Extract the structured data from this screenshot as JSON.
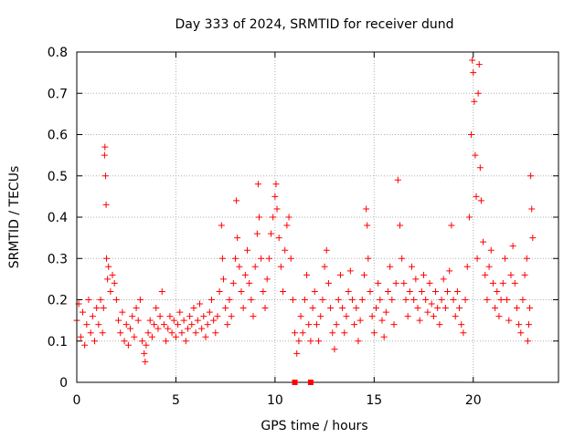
{
  "chart_data": {
    "type": "scatter",
    "title": "Day 333 of 2024, SRMTID for receiver dund",
    "xlabel": "GPS time / hours",
    "ylabel": "SRMTID / TECUs",
    "xlim": [
      0,
      24.3
    ],
    "ylim": [
      0,
      0.8
    ],
    "x_ticks": [
      0,
      5,
      10,
      15,
      20
    ],
    "x_tick_labels": [
      "0",
      "5",
      "10",
      "15",
      "20"
    ],
    "y_ticks": [
      0,
      0.1,
      0.2,
      0.3,
      0.4,
      0.5,
      0.6,
      0.7,
      0.8
    ],
    "y_tick_labels": [
      "0",
      "0.1",
      "0.2",
      "0.3",
      "0.4",
      "0.5",
      "0.6",
      "0.7",
      "0.8"
    ],
    "grid": true,
    "marker": "plus",
    "color": "#ff0000",
    "series": [
      {
        "name": "SRMTID",
        "points": [
          [
            0.0,
            0.15
          ],
          [
            0.1,
            0.19
          ],
          [
            0.2,
            0.11
          ],
          [
            0.3,
            0.17
          ],
          [
            0.4,
            0.09
          ],
          [
            0.5,
            0.14
          ],
          [
            0.6,
            0.2
          ],
          [
            0.7,
            0.12
          ],
          [
            0.8,
            0.16
          ],
          [
            0.9,
            0.1
          ],
          [
            1.0,
            0.18
          ],
          [
            1.1,
            0.14
          ],
          [
            1.2,
            0.2
          ],
          [
            1.3,
            0.12
          ],
          [
            1.35,
            0.18
          ],
          [
            1.4,
            0.55
          ],
          [
            1.42,
            0.57
          ],
          [
            1.45,
            0.5
          ],
          [
            1.48,
            0.43
          ],
          [
            1.5,
            0.3
          ],
          [
            1.55,
            0.25
          ],
          [
            1.6,
            0.28
          ],
          [
            1.7,
            0.22
          ],
          [
            1.8,
            0.26
          ],
          [
            1.9,
            0.24
          ],
          [
            2.0,
            0.2
          ],
          [
            2.1,
            0.15
          ],
          [
            2.2,
            0.12
          ],
          [
            2.3,
            0.17
          ],
          [
            2.4,
            0.1
          ],
          [
            2.5,
            0.14
          ],
          [
            2.6,
            0.09
          ],
          [
            2.7,
            0.13
          ],
          [
            2.8,
            0.16
          ],
          [
            2.9,
            0.11
          ],
          [
            3.0,
            0.18
          ],
          [
            3.1,
            0.15
          ],
          [
            3.2,
            0.2
          ],
          [
            3.3,
            0.1
          ],
          [
            3.4,
            0.07
          ],
          [
            3.45,
            0.05
          ],
          [
            3.5,
            0.09
          ],
          [
            3.6,
            0.12
          ],
          [
            3.7,
            0.15
          ],
          [
            3.8,
            0.11
          ],
          [
            3.9,
            0.14
          ],
          [
            4.0,
            0.18
          ],
          [
            4.1,
            0.13
          ],
          [
            4.2,
            0.16
          ],
          [
            4.3,
            0.22
          ],
          [
            4.4,
            0.14
          ],
          [
            4.5,
            0.1
          ],
          [
            4.6,
            0.13
          ],
          [
            4.7,
            0.16
          ],
          [
            4.8,
            0.12
          ],
          [
            4.9,
            0.15
          ],
          [
            5.0,
            0.11
          ],
          [
            5.1,
            0.14
          ],
          [
            5.2,
            0.17
          ],
          [
            5.3,
            0.12
          ],
          [
            5.4,
            0.15
          ],
          [
            5.5,
            0.1
          ],
          [
            5.6,
            0.13
          ],
          [
            5.7,
            0.16
          ],
          [
            5.8,
            0.14
          ],
          [
            5.9,
            0.18
          ],
          [
            6.0,
            0.12
          ],
          [
            6.1,
            0.15
          ],
          [
            6.2,
            0.19
          ],
          [
            6.3,
            0.13
          ],
          [
            6.4,
            0.16
          ],
          [
            6.5,
            0.11
          ],
          [
            6.6,
            0.14
          ],
          [
            6.7,
            0.17
          ],
          [
            6.8,
            0.2
          ],
          [
            6.9,
            0.15
          ],
          [
            7.0,
            0.12
          ],
          [
            7.1,
            0.16
          ],
          [
            7.2,
            0.22
          ],
          [
            7.3,
            0.38
          ],
          [
            7.35,
            0.3
          ],
          [
            7.4,
            0.25
          ],
          [
            7.5,
            0.18
          ],
          [
            7.6,
            0.14
          ],
          [
            7.7,
            0.2
          ],
          [
            7.8,
            0.16
          ],
          [
            7.9,
            0.24
          ],
          [
            8.0,
            0.3
          ],
          [
            8.05,
            0.44
          ],
          [
            8.1,
            0.35
          ],
          [
            8.2,
            0.28
          ],
          [
            8.3,
            0.22
          ],
          [
            8.4,
            0.18
          ],
          [
            8.5,
            0.26
          ],
          [
            8.6,
            0.32
          ],
          [
            8.7,
            0.24
          ],
          [
            8.8,
            0.2
          ],
          [
            8.9,
            0.16
          ],
          [
            9.0,
            0.28
          ],
          [
            9.1,
            0.36
          ],
          [
            9.15,
            0.48
          ],
          [
            9.2,
            0.4
          ],
          [
            9.3,
            0.3
          ],
          [
            9.4,
            0.22
          ],
          [
            9.5,
            0.18
          ],
          [
            9.6,
            0.25
          ],
          [
            9.7,
            0.3
          ],
          [
            9.8,
            0.36
          ],
          [
            9.9,
            0.4
          ],
          [
            10.0,
            0.45
          ],
          [
            10.05,
            0.48
          ],
          [
            10.1,
            0.42
          ],
          [
            10.2,
            0.35
          ],
          [
            10.3,
            0.28
          ],
          [
            10.4,
            0.22
          ],
          [
            10.5,
            0.32
          ],
          [
            10.6,
            0.38
          ],
          [
            10.7,
            0.4
          ],
          [
            10.8,
            0.3
          ],
          [
            10.9,
            0.2
          ],
          [
            11.0,
            0.12
          ],
          [
            11.1,
            0.07
          ],
          [
            11.2,
            0.1
          ],
          [
            11.3,
            0.16
          ],
          [
            11.4,
            0.12
          ],
          [
            11.5,
            0.2
          ],
          [
            11.6,
            0.26
          ],
          [
            11.7,
            0.14
          ],
          [
            11.8,
            0.1
          ],
          [
            11.9,
            0.18
          ],
          [
            12.0,
            0.22
          ],
          [
            12.1,
            0.14
          ],
          [
            12.2,
            0.1
          ],
          [
            12.3,
            0.16
          ],
          [
            12.4,
            0.2
          ],
          [
            12.5,
            0.28
          ],
          [
            12.6,
            0.32
          ],
          [
            12.7,
            0.24
          ],
          [
            12.8,
            0.18
          ],
          [
            12.9,
            0.12
          ],
          [
            13.0,
            0.08
          ],
          [
            13.1,
            0.14
          ],
          [
            13.2,
            0.2
          ],
          [
            13.3,
            0.26
          ],
          [
            13.4,
            0.18
          ],
          [
            13.5,
            0.12
          ],
          [
            13.6,
            0.16
          ],
          [
            13.7,
            0.22
          ],
          [
            13.8,
            0.27
          ],
          [
            13.9,
            0.2
          ],
          [
            14.0,
            0.14
          ],
          [
            14.1,
            0.18
          ],
          [
            14.2,
            0.1
          ],
          [
            14.3,
            0.15
          ],
          [
            14.4,
            0.2
          ],
          [
            14.5,
            0.26
          ],
          [
            14.6,
            0.42
          ],
          [
            14.65,
            0.38
          ],
          [
            14.7,
            0.3
          ],
          [
            14.8,
            0.22
          ],
          [
            14.9,
            0.16
          ],
          [
            15.0,
            0.12
          ],
          [
            15.1,
            0.18
          ],
          [
            15.2,
            0.24
          ],
          [
            15.3,
            0.2
          ],
          [
            15.4,
            0.15
          ],
          [
            15.5,
            0.11
          ],
          [
            15.6,
            0.17
          ],
          [
            15.7,
            0.22
          ],
          [
            15.8,
            0.28
          ],
          [
            15.9,
            0.2
          ],
          [
            16.0,
            0.14
          ],
          [
            16.1,
            0.24
          ],
          [
            16.2,
            0.49
          ],
          [
            16.3,
            0.38
          ],
          [
            16.4,
            0.3
          ],
          [
            16.5,
            0.24
          ],
          [
            16.6,
            0.2
          ],
          [
            16.7,
            0.16
          ],
          [
            16.8,
            0.22
          ],
          [
            16.9,
            0.28
          ],
          [
            17.0,
            0.2
          ],
          [
            17.1,
            0.25
          ],
          [
            17.2,
            0.18
          ],
          [
            17.3,
            0.15
          ],
          [
            17.4,
            0.22
          ],
          [
            17.5,
            0.26
          ],
          [
            17.6,
            0.2
          ],
          [
            17.7,
            0.17
          ],
          [
            17.8,
            0.24
          ],
          [
            17.9,
            0.19
          ],
          [
            18.0,
            0.16
          ],
          [
            18.1,
            0.22
          ],
          [
            18.2,
            0.18
          ],
          [
            18.3,
            0.14
          ],
          [
            18.4,
            0.2
          ],
          [
            18.5,
            0.25
          ],
          [
            18.6,
            0.18
          ],
          [
            18.7,
            0.22
          ],
          [
            18.8,
            0.27
          ],
          [
            18.9,
            0.38
          ],
          [
            19.0,
            0.2
          ],
          [
            19.1,
            0.16
          ],
          [
            19.2,
            0.22
          ],
          [
            19.3,
            0.18
          ],
          [
            19.4,
            0.14
          ],
          [
            19.5,
            0.12
          ],
          [
            19.6,
            0.2
          ],
          [
            19.7,
            0.28
          ],
          [
            19.8,
            0.4
          ],
          [
            19.9,
            0.6
          ],
          [
            19.95,
            0.78
          ],
          [
            20.0,
            0.75
          ],
          [
            20.05,
            0.68
          ],
          [
            20.1,
            0.55
          ],
          [
            20.15,
            0.45
          ],
          [
            20.2,
            0.3
          ],
          [
            20.25,
            0.7
          ],
          [
            20.3,
            0.77
          ],
          [
            20.35,
            0.52
          ],
          [
            20.4,
            0.44
          ],
          [
            20.5,
            0.34
          ],
          [
            20.6,
            0.26
          ],
          [
            20.7,
            0.2
          ],
          [
            20.8,
            0.28
          ],
          [
            20.9,
            0.32
          ],
          [
            21.0,
            0.24
          ],
          [
            21.1,
            0.18
          ],
          [
            21.2,
            0.22
          ],
          [
            21.3,
            0.16
          ],
          [
            21.4,
            0.2
          ],
          [
            21.5,
            0.24
          ],
          [
            21.6,
            0.3
          ],
          [
            21.7,
            0.2
          ],
          [
            21.8,
            0.15
          ],
          [
            21.9,
            0.26
          ],
          [
            22.0,
            0.33
          ],
          [
            22.1,
            0.24
          ],
          [
            22.2,
            0.18
          ],
          [
            22.3,
            0.14
          ],
          [
            22.4,
            0.12
          ],
          [
            22.5,
            0.2
          ],
          [
            22.6,
            0.26
          ],
          [
            22.7,
            0.3
          ],
          [
            22.75,
            0.1
          ],
          [
            22.8,
            0.14
          ],
          [
            22.85,
            0.18
          ],
          [
            22.9,
            0.5
          ],
          [
            22.95,
            0.42
          ],
          [
            23.0,
            0.35
          ]
        ]
      }
    ],
    "axis_markers": [
      {
        "x": 11.0,
        "y": 0
      },
      {
        "x": 11.8,
        "y": 0
      }
    ]
  }
}
